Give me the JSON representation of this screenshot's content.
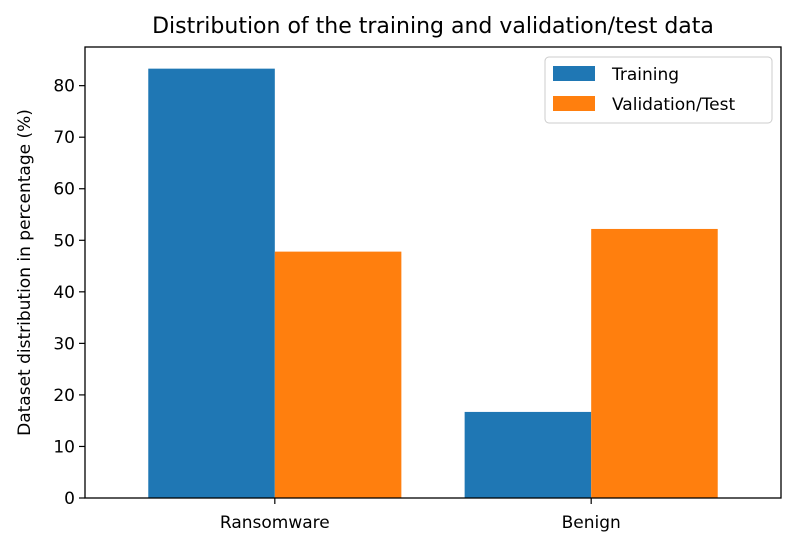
{
  "chart_data": {
    "type": "bar",
    "title": "Distribution of the training and validation/test data",
    "xlabel": "",
    "ylabel": "Dataset distribution in percentage (%)",
    "categories": [
      "Ransomware",
      "Benign"
    ],
    "series": [
      {
        "name": "Training",
        "values": [
          83.3,
          16.7
        ],
        "color": "#1f77b4"
      },
      {
        "name": "Validation/Test",
        "values": [
          47.8,
          52.2
        ],
        "color": "#ff7f0e"
      }
    ],
    "ylim": [
      0,
      87.5
    ],
    "yticks": [
      0,
      10,
      20,
      30,
      40,
      50,
      60,
      70,
      80
    ],
    "legend_position": "top-right",
    "grid": false
  }
}
